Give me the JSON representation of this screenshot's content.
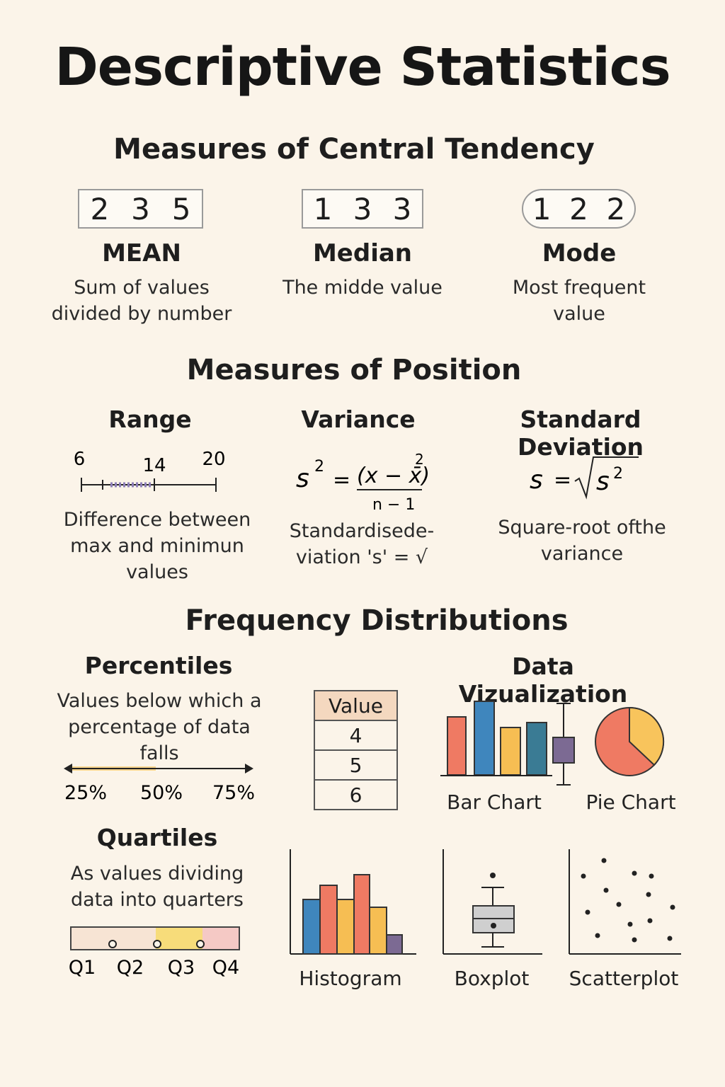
{
  "title": "Descriptive Statistics",
  "central_tendency": {
    "heading": "Measures of Central Tendency",
    "items": [
      {
        "numbers": [
          "2",
          "3",
          "5"
        ],
        "name": "MEAN",
        "description_lines": [
          "Sum of values",
          "divided by number"
        ]
      },
      {
        "numbers": [
          "1",
          "3",
          "3"
        ],
        "name": "Median",
        "description_lines": [
          "The midde value"
        ]
      },
      {
        "numbers": [
          "1",
          "2",
          "2"
        ],
        "name": "Mode",
        "description_lines": [
          "Most frequent",
          "value"
        ]
      }
    ]
  },
  "position": {
    "heading": "Measures of Position",
    "range": {
      "name": "Range",
      "ticks": [
        "6",
        "14",
        "20"
      ],
      "description_lines": [
        "Difference between",
        "max and minimun",
        "values"
      ]
    },
    "variance": {
      "name": "Variance",
      "formula": {
        "lhs": "s",
        "lhs_exp": "2",
        "eq": "=",
        "numerator": "(x − x̄)",
        "num_exp": "2",
        "denominator": "n − 1"
      },
      "description_lines": [
        "Standardisede-",
        "viation 's' = √"
      ]
    },
    "std_dev": {
      "name": "Standard Deviation",
      "formula": {
        "lhs": "s",
        "eq": "=",
        "radicand": "s",
        "rad_exp": "2"
      },
      "description_lines": [
        "Square-root ofthe",
        "variance"
      ]
    }
  },
  "frequency": {
    "heading": "Frequency Distributions",
    "percentiles": {
      "name": "Percentiles",
      "description_lines": [
        "Values below which a",
        "percentage of data",
        "falls"
      ],
      "labels": [
        "25%",
        "50%",
        "75%"
      ]
    },
    "value_table": {
      "header": "Value",
      "rows": [
        "4",
        "5",
        "6"
      ]
    },
    "quartiles": {
      "name": "Quartiles",
      "description_lines": [
        "As values dividing",
        "data into quarters"
      ],
      "labels": [
        "Q1",
        "Q2",
        "Q3",
        "Q4"
      ]
    },
    "data_viz": {
      "heading": "Data Vizualization",
      "bar_chart_label": "Bar Chart",
      "pie_chart_label": "Pie Chart"
    },
    "histogram_label": "Histogram",
    "boxplot_label": "Boxplot",
    "scatterplot_label": "Scatterplot"
  },
  "colors": {
    "background": "#fbf4e9",
    "coral": "#ef7a63",
    "blue": "#3f86bd",
    "gold": "#f6be53",
    "teal": "#3a7b94",
    "purple": "#7c6a93",
    "pie_gold": "#f8c45c"
  }
}
